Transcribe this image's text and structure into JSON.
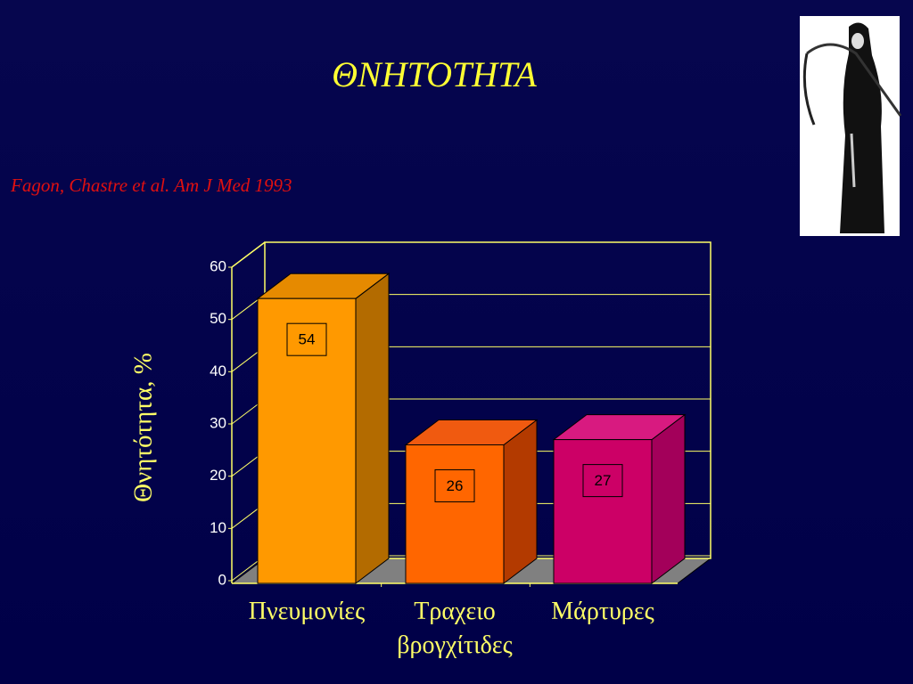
{
  "chart_data": {
    "type": "bar3d",
    "title": "ΘΝΗΤΟΤΗΤΑ",
    "subtitle": "Fagon, Chastre et al. Am J Med 1993",
    "y_label": "Θνητότητα, %",
    "categories": [
      "Πνευμονίες",
      "Τραχειο βρογχίτιδες",
      "Μάρτυρες"
    ],
    "series": [
      {
        "values": [
          54,
          26,
          27
        ],
        "colors": [
          "#ff9900",
          "#ff6600",
          "#cc0066"
        ],
        "side_colors": [
          "#b36b00",
          "#b33a00",
          "#a3005a"
        ],
        "top_colors": [
          "#e68a00",
          "#f05a10",
          "#d81a80"
        ]
      }
    ],
    "ylim": [
      0,
      60
    ],
    "yticks": [
      0,
      10,
      20,
      30,
      40,
      50,
      60
    ],
    "grid": true
  }
}
